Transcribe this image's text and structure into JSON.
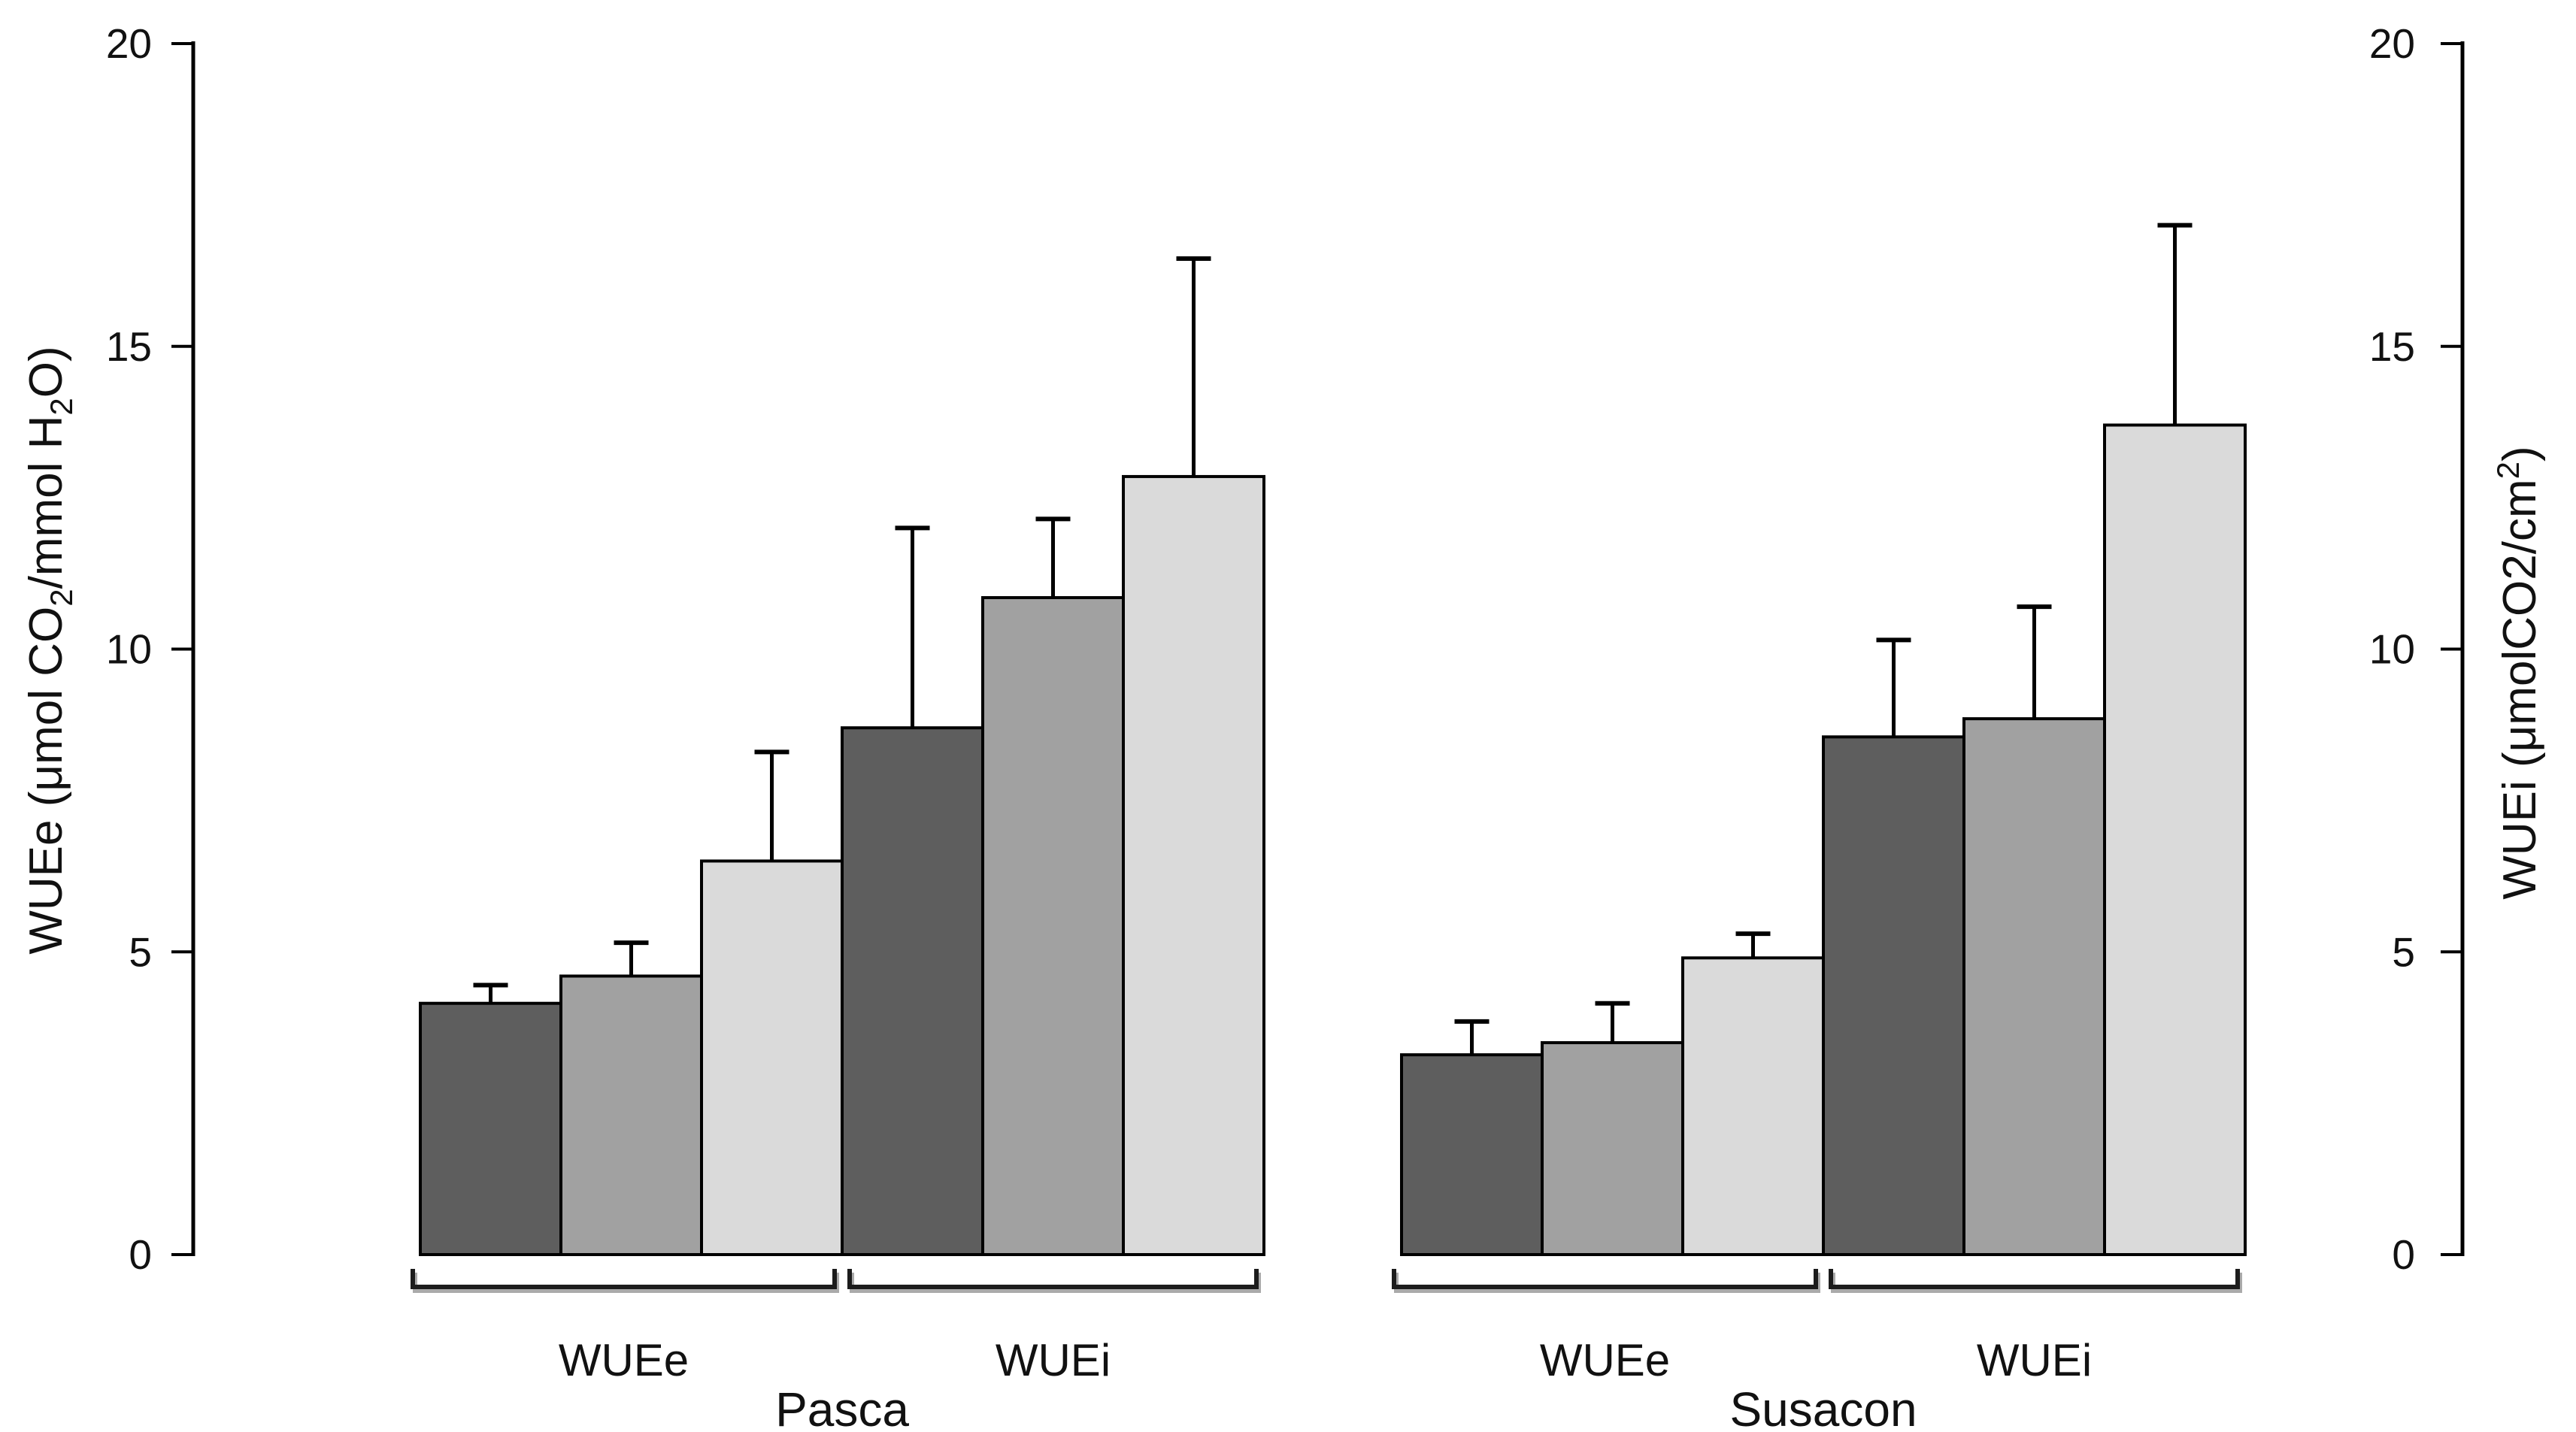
{
  "figure": {
    "background": "#ffffff",
    "axis_color": "#000000",
    "bar_outline_color": "#000000",
    "error_bar_color": "#000000",
    "bracket_color": "#1c1c1c",
    "bracket_shadow_color": "#aaaaaa"
  },
  "chart_data": {
    "type": "bar",
    "title": "",
    "grid": false,
    "legend": false,
    "y_axis_left": {
      "title": "WUEe (μmol CO2/mmol H2O)",
      "title_segments": [
        {
          "t": "WUEe (μmol CO"
        },
        {
          "t": "2",
          "shift": "sub"
        },
        {
          "t": "/mmol H"
        },
        {
          "t": "2",
          "shift": "sub"
        },
        {
          "t": "O)"
        }
      ],
      "range": [
        0,
        20
      ],
      "ticks": [
        0,
        5,
        10,
        15,
        20
      ]
    },
    "y_axis_right": {
      "title": "WUEi (μmolCO2/cm2)",
      "title_segments": [
        {
          "t": "WUEi (μmolCO2/cm"
        },
        {
          "t": "2",
          "shift": "sup"
        },
        {
          "t": ")"
        }
      ],
      "range": [
        0,
        20
      ],
      "ticks": [
        0,
        5,
        10,
        15,
        20
      ]
    },
    "series_colors": [
      "#5e5e5e",
      "#a1a1a1",
      "#dadada"
    ],
    "series_names": [
      "dark-gray",
      "mid-gray",
      "light-gray"
    ],
    "groups": [
      {
        "label": "Pasca",
        "clusters": [
          {
            "label": "WUEe",
            "bars": [
              {
                "series": "dark-gray",
                "value": 4.15,
                "error_top": 4.45
              },
              {
                "series": "mid-gray",
                "value": 4.6,
                "error_top": 5.15
              },
              {
                "series": "light-gray",
                "value": 6.5,
                "error_top": 8.3
              }
            ]
          },
          {
            "label": "WUEi",
            "bars": [
              {
                "series": "dark-gray",
                "value": 8.7,
                "error_top": 12.0
              },
              {
                "series": "mid-gray",
                "value": 10.85,
                "error_top": 12.15
              },
              {
                "series": "light-gray",
                "value": 12.85,
                "error_top": 16.45
              }
            ]
          }
        ]
      },
      {
        "label": "Susacon",
        "clusters": [
          {
            "label": "WUEe",
            "bars": [
              {
                "series": "dark-gray",
                "value": 3.3,
                "error_top": 3.85
              },
              {
                "series": "mid-gray",
                "value": 3.5,
                "error_top": 4.15
              },
              {
                "series": "light-gray",
                "value": 4.9,
                "error_top": 5.3
              }
            ]
          },
          {
            "label": "WUEi",
            "bars": [
              {
                "series": "dark-gray",
                "value": 8.55,
                "error_top": 10.15
              },
              {
                "series": "mid-gray",
                "value": 8.85,
                "error_top": 10.7
              },
              {
                "series": "light-gray",
                "value": 13.7,
                "error_top": 17.0
              }
            ]
          }
        ]
      }
    ]
  }
}
